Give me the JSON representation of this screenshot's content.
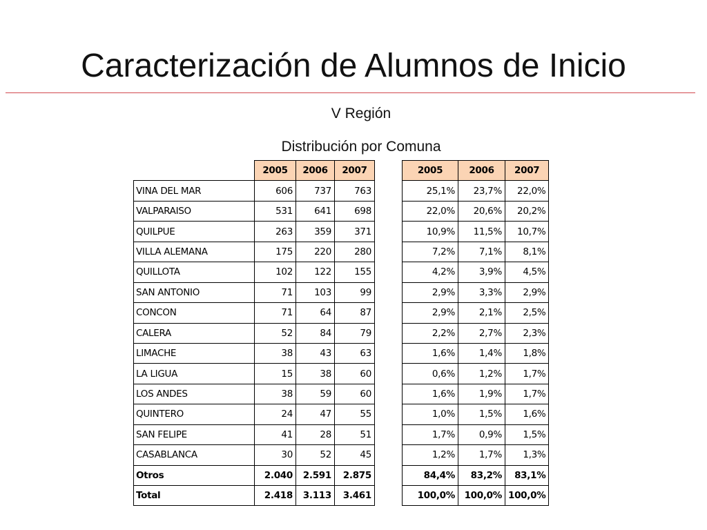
{
  "slide": {
    "title": "Caracterización de Alumnos de Inicio",
    "region": "V Región",
    "subtitle": "Distribución por Comuna"
  },
  "colors": {
    "header_fill": "#fbd4b4",
    "title_rule": "#d2474d"
  },
  "table": {
    "count_headers": [
      "2005",
      "2006",
      "2007"
    ],
    "pct_headers": [
      "2005",
      "2006",
      "2007"
    ],
    "rows": [
      {
        "comuna": "VINA DEL MAR",
        "counts": [
          "606",
          "737",
          "763"
        ],
        "pcts": [
          "25,1%",
          "23,7%",
          "22,0%"
        ]
      },
      {
        "comuna": "VALPARAISO",
        "counts": [
          "531",
          "641",
          "698"
        ],
        "pcts": [
          "22,0%",
          "20,6%",
          "20,2%"
        ]
      },
      {
        "comuna": "QUILPUE",
        "counts": [
          "263",
          "359",
          "371"
        ],
        "pcts": [
          "10,9%",
          "11,5%",
          "10,7%"
        ]
      },
      {
        "comuna": "VILLA ALEMANA",
        "counts": [
          "175",
          "220",
          "280"
        ],
        "pcts": [
          "7,2%",
          "7,1%",
          "8,1%"
        ]
      },
      {
        "comuna": "QUILLOTA",
        "counts": [
          "102",
          "122",
          "155"
        ],
        "pcts": [
          "4,2%",
          "3,9%",
          "4,5%"
        ]
      },
      {
        "comuna": "SAN ANTONIO",
        "counts": [
          "71",
          "103",
          "99"
        ],
        "pcts": [
          "2,9%",
          "3,3%",
          "2,9%"
        ]
      },
      {
        "comuna": "CONCON",
        "counts": [
          "71",
          "64",
          "87"
        ],
        "pcts": [
          "2,9%",
          "2,1%",
          "2,5%"
        ]
      },
      {
        "comuna": "CALERA",
        "counts": [
          "52",
          "84",
          "79"
        ],
        "pcts": [
          "2,2%",
          "2,7%",
          "2,3%"
        ]
      },
      {
        "comuna": "LIMACHE",
        "counts": [
          "38",
          "43",
          "63"
        ],
        "pcts": [
          "1,6%",
          "1,4%",
          "1,8%"
        ]
      },
      {
        "comuna": "LA LIGUA",
        "counts": [
          "15",
          "38",
          "60"
        ],
        "pcts": [
          "0,6%",
          "1,2%",
          "1,7%"
        ]
      },
      {
        "comuna": "LOS ANDES",
        "counts": [
          "38",
          "59",
          "60"
        ],
        "pcts": [
          "1,6%",
          "1,9%",
          "1,7%"
        ]
      },
      {
        "comuna": "QUINTERO",
        "counts": [
          "24",
          "47",
          "55"
        ],
        "pcts": [
          "1,0%",
          "1,5%",
          "1,6%"
        ]
      },
      {
        "comuna": "SAN FELIPE",
        "counts": [
          "41",
          "28",
          "51"
        ],
        "pcts": [
          "1,7%",
          "0,9%",
          "1,5%"
        ]
      },
      {
        "comuna": "CASABLANCA",
        "counts": [
          "30",
          "52",
          "45"
        ],
        "pcts": [
          "1,2%",
          "1,7%",
          "1,3%"
        ]
      },
      {
        "comuna": "Otros",
        "counts": [
          "2.040",
          "2.591",
          "2.875"
        ],
        "pcts": [
          "84,4%",
          "83,2%",
          "83,1%"
        ],
        "bold": true
      },
      {
        "comuna": "Total",
        "counts": [
          "2.418",
          "3.113",
          "3.461"
        ],
        "pcts": [
          "100,0%",
          "100,0%",
          "100,0%"
        ],
        "bold": true
      }
    ]
  }
}
